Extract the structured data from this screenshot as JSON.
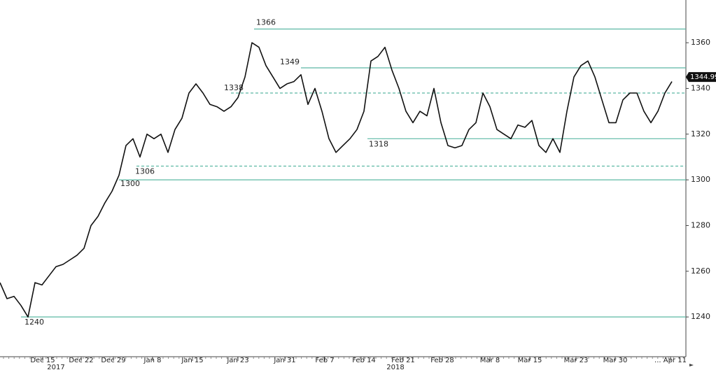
{
  "chart_data": {
    "type": "line",
    "color": "#111111",
    "level_color": "#5cb8a4",
    "values": [
      1255,
      1248,
      1249,
      1245,
      1240,
      1255,
      1254,
      1258,
      1262,
      1263,
      1265,
      1267,
      1270,
      1280,
      1284,
      1290,
      1295,
      1302,
      1315,
      1318,
      1310,
      1320,
      1318,
      1320,
      1312,
      1322,
      1327,
      1338,
      1342,
      1338,
      1333,
      1332,
      1330,
      1332,
      1336,
      1345,
      1360,
      1358,
      1350,
      1345,
      1340,
      1342,
      1343,
      1346,
      1333,
      1340,
      1330,
      1318,
      1312,
      1315,
      1318,
      1322,
      1330,
      1352,
      1354,
      1358,
      1348,
      1340,
      1330,
      1325,
      1330,
      1328,
      1340,
      1325,
      1315,
      1314,
      1315,
      1322,
      1325,
      1338,
      1332,
      1322,
      1320,
      1318,
      1324,
      1323,
      1326,
      1315,
      1312,
      1318,
      1312,
      1330,
      1345,
      1350,
      1352,
      1345,
      1335,
      1325,
      1325,
      1335,
      1338,
      1338,
      1330,
      1325,
      1330,
      1338,
      1343
    ],
    "xlim": [
      0,
      98
    ],
    "xticks": [
      {
        "value": 6.1,
        "label": "Dec 15"
      },
      {
        "value": 11.6,
        "label": "Dec 22"
      },
      {
        "value": 16.2,
        "label": "Dec 29"
      },
      {
        "value": 21.8,
        "label": "Jan 8"
      },
      {
        "value": 27.5,
        "label": "Jan 15"
      },
      {
        "value": 34,
        "label": "Jan 23"
      },
      {
        "value": 40.7,
        "label": "Jan 31"
      },
      {
        "value": 46.4,
        "label": "Feb 7"
      },
      {
        "value": 52,
        "label": "Feb 14"
      },
      {
        "value": 57.6,
        "label": "Feb 21"
      },
      {
        "value": 63.2,
        "label": "Feb 28"
      },
      {
        "value": 70,
        "label": "Mar 8"
      },
      {
        "value": 75.7,
        "label": "Mar 15"
      },
      {
        "value": 82.3,
        "label": "Mar 23"
      },
      {
        "value": 87.9,
        "label": "Mar 30"
      },
      {
        "value": 95.8,
        "label": "... Apr 11"
      }
    ],
    "year_labels": [
      {
        "value": 8,
        "label": "2017"
      },
      {
        "value": 56.5,
        "label": "2018"
      }
    ],
    "ylim": [
      1222.6,
      1378.7
    ],
    "yticks": [
      1240,
      1260,
      1280,
      1300,
      1320,
      1340,
      1360
    ],
    "levels": [
      {
        "value": 1366,
        "style": "solid"
      },
      {
        "value": 1349,
        "style": "solid"
      },
      {
        "value": 1338,
        "style": "dashed"
      },
      {
        "value": 1318,
        "style": "solid"
      },
      {
        "value": 1306,
        "style": "dashed"
      },
      {
        "value": 1300,
        "style": "solid"
      },
      {
        "value": 1240,
        "style": "solid"
      }
    ],
    "last_price": 1344.99
  }
}
